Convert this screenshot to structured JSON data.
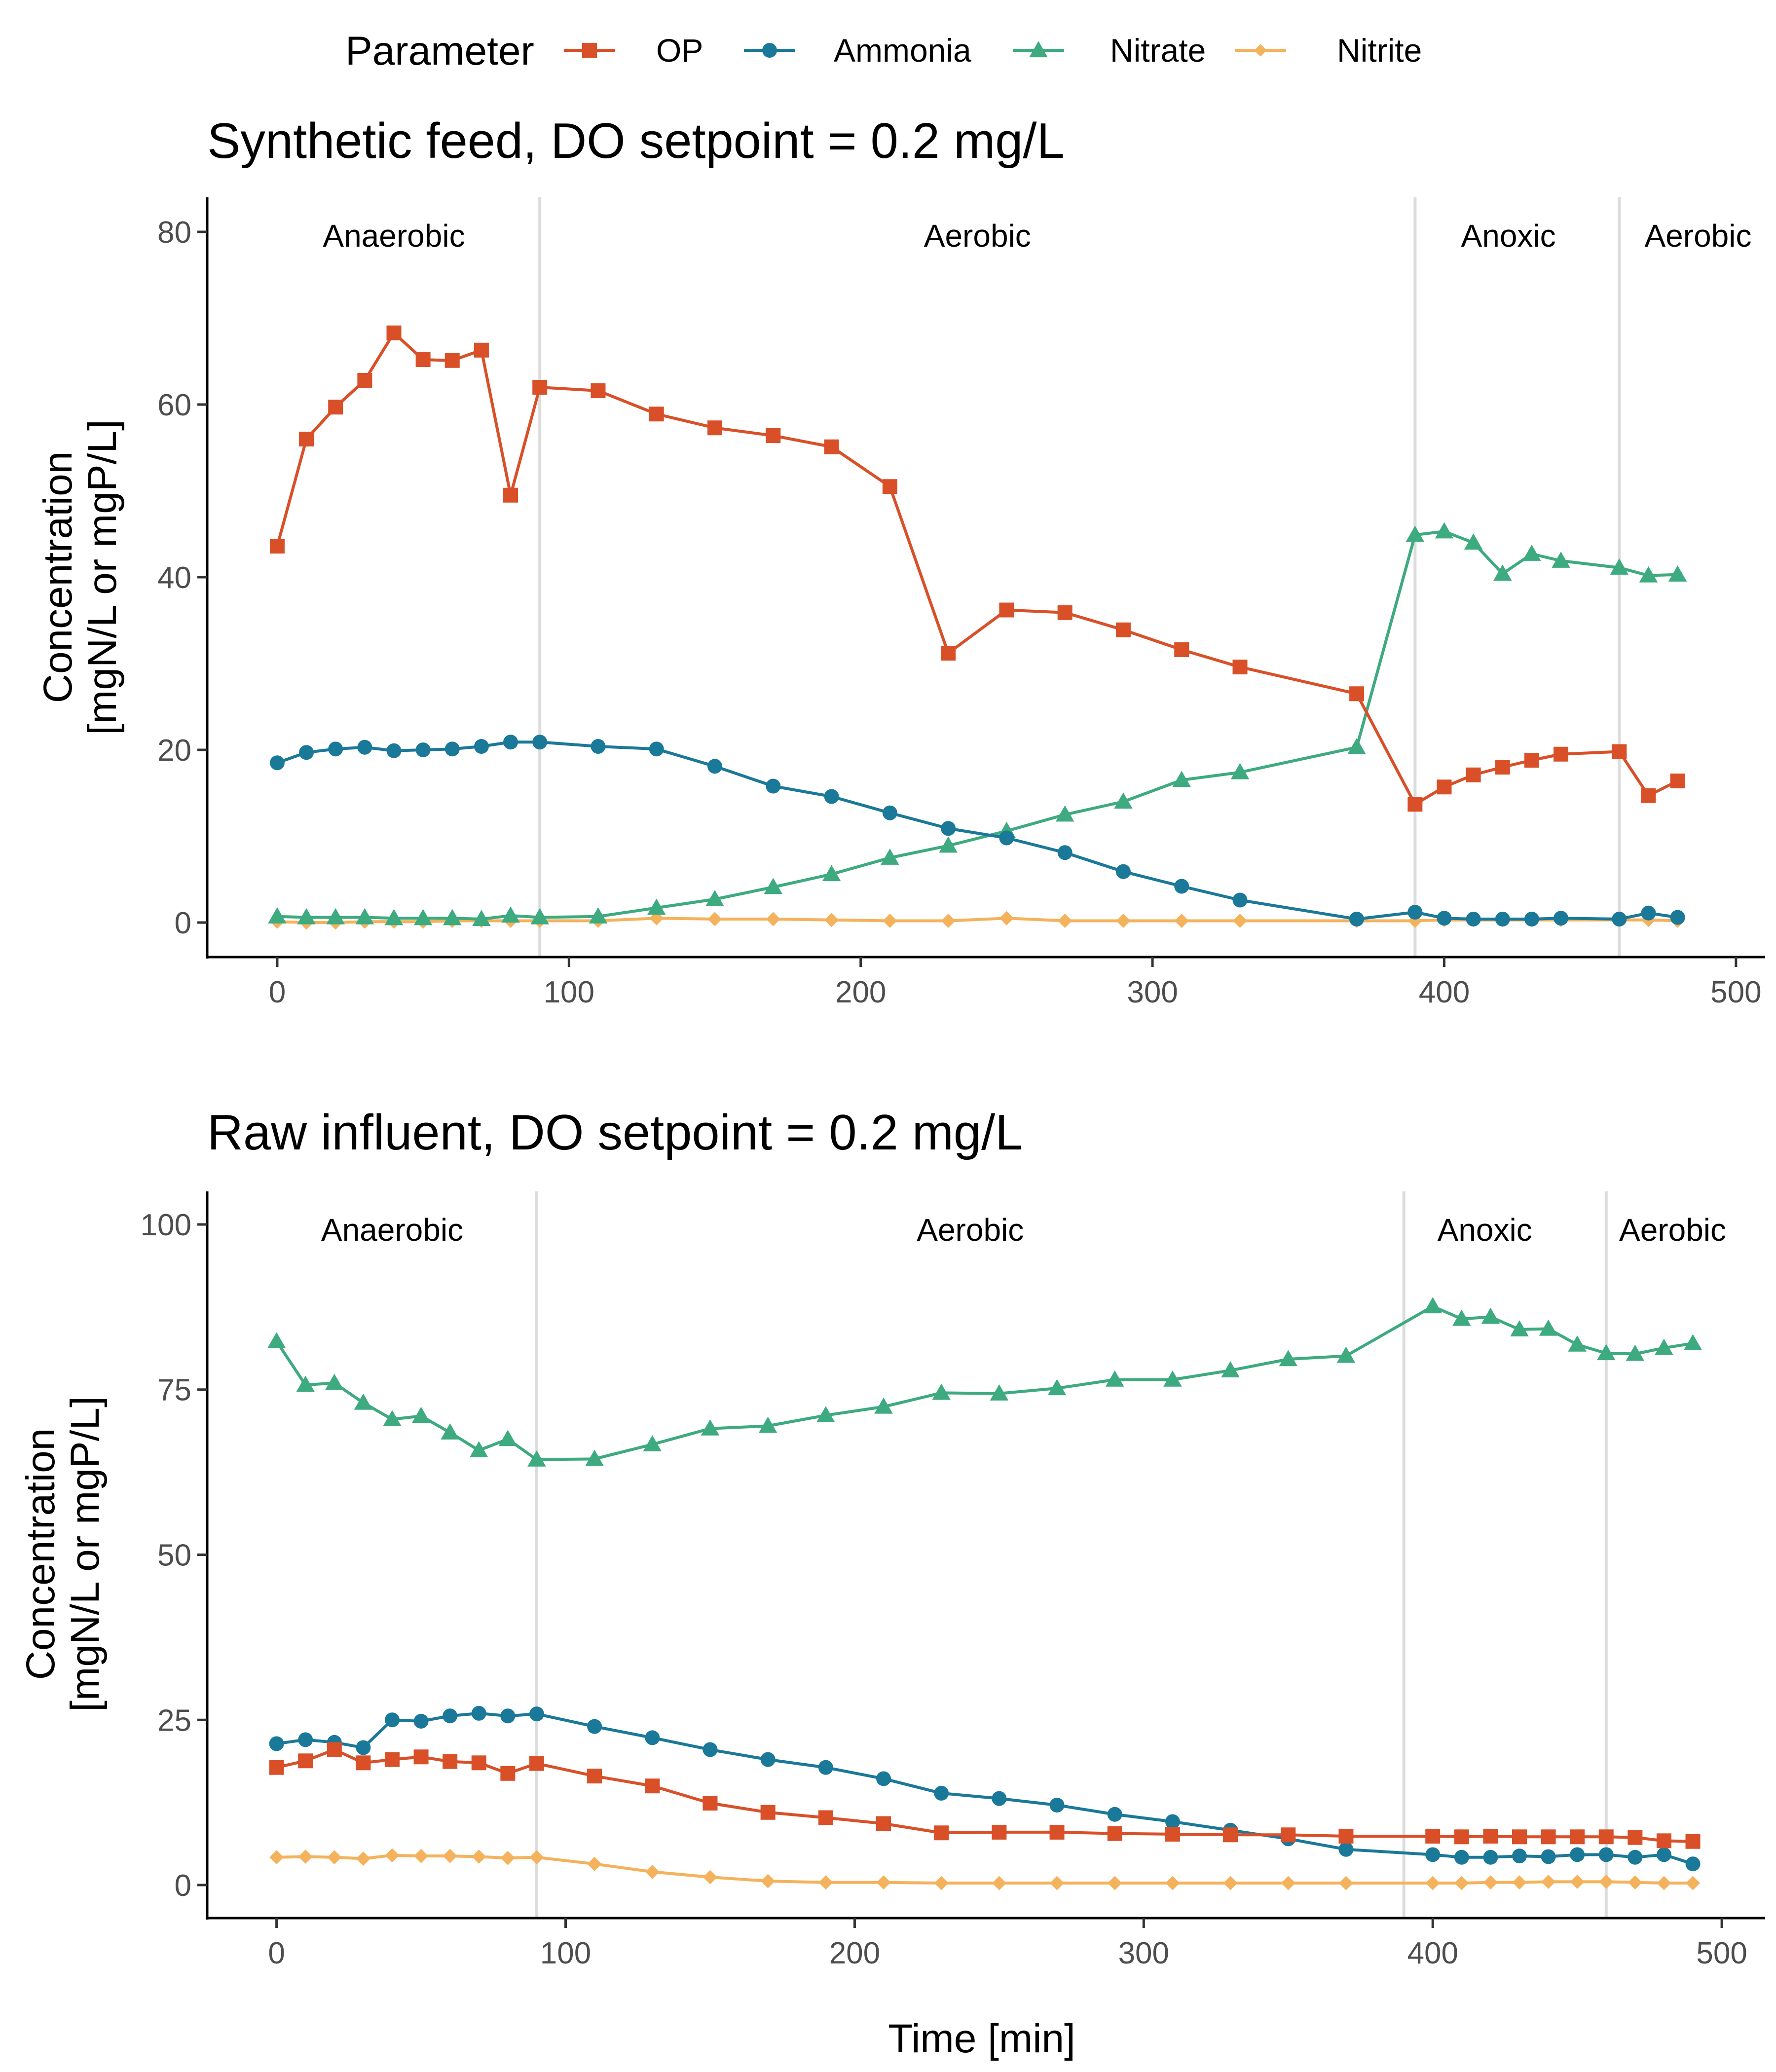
{
  "legend": {
    "title": "Parameter",
    "entries": [
      {
        "name": "OP",
        "color": "#D95028",
        "marker": "square"
      },
      {
        "name": "Ammonia",
        "color": "#1A7899",
        "marker": "circle"
      },
      {
        "name": "Nitrate",
        "color": "#3DAA7F",
        "marker": "triangle"
      },
      {
        "name": "Nitrite",
        "color": "#F5B25C",
        "marker": "diamond"
      }
    ],
    "placement": "top"
  },
  "x_axis_title": "Time [min]",
  "chart_data": [
    {
      "type": "line",
      "title": "Synthetic feed, DO setpoint = 0.2 mg/L",
      "xlabel": "",
      "ylabel": [
        "Concentration",
        "[mgN/L or mgP/L]"
      ],
      "xlim": [
        -24,
        510
      ],
      "ylim": [
        -4,
        84
      ],
      "xticks": [
        0,
        100,
        200,
        300,
        400,
        500
      ],
      "yticks": [
        0,
        20,
        40,
        60,
        80
      ],
      "grid": false,
      "phase_boundaries": [
        90,
        390,
        460
      ],
      "phases": [
        {
          "label": "Anaerobic",
          "x": 40
        },
        {
          "label": "Aerobic",
          "x": 240
        },
        {
          "label": "Anoxic",
          "x": 422
        },
        {
          "label": "Aerobic",
          "x": 487
        }
      ],
      "series": [
        {
          "name": "OP",
          "x": [
            0,
            10,
            20,
            30,
            40,
            50,
            60,
            70,
            80,
            90,
            110,
            130,
            150,
            170,
            190,
            210,
            230,
            250,
            270,
            290,
            310,
            330,
            370,
            390,
            400,
            410,
            420,
            430,
            440,
            460,
            470,
            480
          ],
          "y": [
            43.6,
            56,
            59.7,
            62.8,
            68.3,
            65.2,
            65.1,
            66.3,
            49.5,
            62,
            61.6,
            58.9,
            57.3,
            56.4,
            55.1,
            50.5,
            31.2,
            36.2,
            35.9,
            33.9,
            31.6,
            29.6,
            26.5,
            13.7,
            15.7,
            17.1,
            18,
            18.8,
            19.5,
            19.8,
            14.7,
            16.4
          ]
        },
        {
          "name": "Ammonia",
          "x": [
            0,
            10,
            20,
            30,
            40,
            50,
            60,
            70,
            80,
            90,
            110,
            130,
            150,
            170,
            190,
            210,
            230,
            250,
            270,
            290,
            310,
            330,
            370,
            390,
            400,
            410,
            420,
            430,
            440,
            460,
            470,
            480
          ],
          "y": [
            18.5,
            19.7,
            20.1,
            20.3,
            19.9,
            20,
            20.1,
            20.4,
            20.9,
            20.9,
            20.4,
            20.1,
            18.1,
            15.8,
            14.6,
            12.7,
            10.9,
            9.8,
            8.1,
            5.9,
            4.2,
            2.6,
            0.4,
            1.2,
            0.5,
            0.4,
            0.4,
            0.4,
            0.5,
            0.4,
            1.1,
            0.6
          ]
        },
        {
          "name": "Nitrate",
          "x": [
            0,
            10,
            20,
            30,
            40,
            50,
            60,
            70,
            80,
            90,
            110,
            130,
            150,
            170,
            190,
            210,
            230,
            250,
            270,
            290,
            310,
            330,
            370,
            390,
            400,
            410,
            420,
            430,
            440,
            460,
            470,
            480
          ],
          "y": [
            0.7,
            0.6,
            0.6,
            0.6,
            0.5,
            0.5,
            0.5,
            0.4,
            0.8,
            0.6,
            0.7,
            1.7,
            2.7,
            4.1,
            5.6,
            7.5,
            8.9,
            10.6,
            12.5,
            14,
            16.5,
            17.4,
            20.3,
            44.9,
            45.3,
            44,
            40.4,
            42.7,
            41.9,
            41.1,
            40.2,
            40.3
          ]
        },
        {
          "name": "Nitrite",
          "x": [
            0,
            10,
            20,
            30,
            40,
            50,
            60,
            70,
            80,
            90,
            110,
            130,
            150,
            170,
            190,
            210,
            230,
            250,
            270,
            290,
            310,
            330,
            370,
            390,
            400,
            410,
            420,
            430,
            440,
            460,
            470,
            480
          ],
          "y": [
            0.1,
            0,
            0,
            0.1,
            0.1,
            0.1,
            0.2,
            0.2,
            0.2,
            0.2,
            0.2,
            0.5,
            0.4,
            0.4,
            0.3,
            0.2,
            0.2,
            0.5,
            0.2,
            0.2,
            0.2,
            0.2,
            0.2,
            0.2,
            0.3,
            0.3,
            0.3,
            0.3,
            0.3,
            0.3,
            0.3,
            0.2
          ]
        }
      ]
    },
    {
      "type": "line",
      "title": "Raw influent, DO setpoint = 0.2 mg/L",
      "xlabel": "Time [min]",
      "ylabel": [
        "Concentration",
        "[mgN/L or mgP/L]"
      ],
      "xlim": [
        -24,
        515
      ],
      "ylim": [
        -5,
        105
      ],
      "xticks": [
        0,
        100,
        200,
        300,
        400,
        500
      ],
      "yticks": [
        0,
        25,
        50,
        75,
        100
      ],
      "grid": false,
      "phase_boundaries": [
        90,
        390,
        460
      ],
      "phases": [
        {
          "label": "Anaerobic",
          "x": 40
        },
        {
          "label": "Aerobic",
          "x": 240
        },
        {
          "label": "Anoxic",
          "x": 418
        },
        {
          "label": "Aerobic",
          "x": 483
        }
      ],
      "series": [
        {
          "name": "OP",
          "x": [
            0,
            10,
            20,
            30,
            40,
            50,
            60,
            70,
            80,
            90,
            110,
            130,
            150,
            170,
            190,
            210,
            230,
            250,
            270,
            290,
            310,
            330,
            350,
            370,
            400,
            410,
            420,
            430,
            440,
            450,
            460,
            470,
            480,
            490
          ],
          "y": [
            17.8,
            18.8,
            20.5,
            18.5,
            19,
            19.4,
            18.7,
            18.5,
            16.9,
            18.4,
            16.5,
            15,
            12.4,
            11,
            10.2,
            9.3,
            7.9,
            8,
            8,
            7.8,
            7.7,
            7.6,
            7.6,
            7.4,
            7.4,
            7.3,
            7.4,
            7.3,
            7.3,
            7.3,
            7.3,
            7.2,
            6.7,
            6.6
          ]
        },
        {
          "name": "Ammonia",
          "x": [
            0,
            10,
            20,
            30,
            40,
            50,
            60,
            70,
            80,
            90,
            110,
            130,
            150,
            170,
            190,
            210,
            230,
            250,
            270,
            290,
            310,
            330,
            350,
            370,
            400,
            410,
            420,
            430,
            440,
            450,
            460,
            470,
            480,
            490
          ],
          "y": [
            21.4,
            22,
            21.6,
            20.8,
            25,
            24.8,
            25.6,
            26,
            25.6,
            25.9,
            24,
            22.3,
            20.5,
            19,
            17.8,
            16.1,
            13.9,
            13.1,
            12.1,
            10.7,
            9.6,
            8.3,
            7,
            5.4,
            4.6,
            4.2,
            4.2,
            4.4,
            4.3,
            4.6,
            4.6,
            4.2,
            4.6,
            3.2
          ]
        },
        {
          "name": "Nitrate",
          "x": [
            0,
            10,
            20,
            30,
            40,
            50,
            60,
            70,
            80,
            90,
            110,
            130,
            150,
            170,
            190,
            210,
            230,
            250,
            270,
            290,
            310,
            330,
            350,
            370,
            400,
            410,
            420,
            430,
            440,
            450,
            460,
            470,
            480,
            490
          ],
          "y": [
            82.3,
            75.7,
            76,
            73,
            70.5,
            71,
            68.5,
            65.8,
            67.5,
            64.4,
            64.5,
            66.7,
            69.1,
            69.5,
            71.1,
            72.4,
            74.5,
            74.4,
            75.2,
            76.5,
            76.5,
            77.9,
            79.6,
            80.1,
            87.6,
            85.7,
            86,
            84.1,
            84.2,
            81.8,
            80.5,
            80.4,
            81.3,
            82
          ]
        },
        {
          "name": "Nitrite",
          "x": [
            0,
            10,
            20,
            30,
            40,
            50,
            60,
            70,
            80,
            90,
            110,
            130,
            150,
            170,
            190,
            210,
            230,
            250,
            270,
            290,
            310,
            330,
            350,
            370,
            400,
            410,
            420,
            430,
            440,
            450,
            460,
            470,
            480,
            490
          ],
          "y": [
            4.2,
            4.3,
            4.2,
            4,
            4.5,
            4.4,
            4.4,
            4.3,
            4.1,
            4.2,
            3.2,
            2,
            1.2,
            0.6,
            0.4,
            0.4,
            0.3,
            0.3,
            0.3,
            0.3,
            0.3,
            0.3,
            0.3,
            0.3,
            0.3,
            0.3,
            0.4,
            0.4,
            0.5,
            0.5,
            0.5,
            0.4,
            0.3,
            0.3
          ]
        }
      ]
    }
  ]
}
